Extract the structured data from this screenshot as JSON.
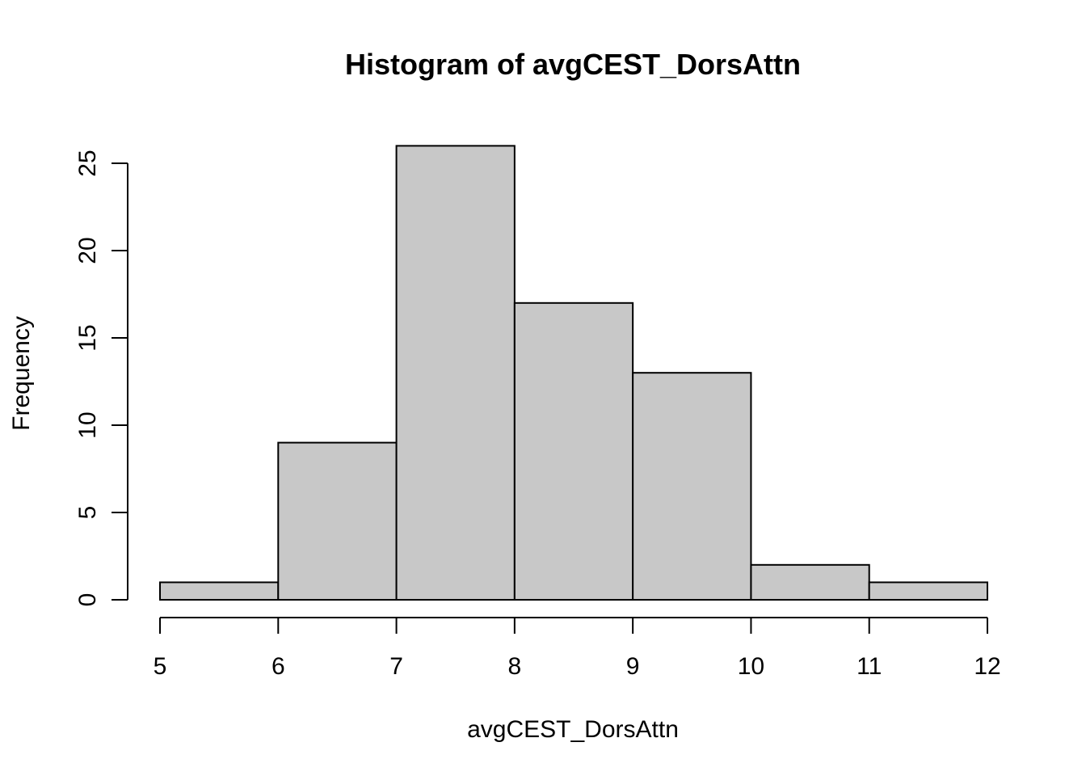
{
  "chart_data": {
    "type": "bar",
    "title": "Histogram of avgCEST_DorsAttn",
    "xlabel": "avgCEST_DorsAttn",
    "ylabel": "Frequency",
    "bins": [
      {
        "x0": 5,
        "x1": 6,
        "count": 1
      },
      {
        "x0": 6,
        "x1": 7,
        "count": 9
      },
      {
        "x0": 7,
        "x1": 8,
        "count": 26
      },
      {
        "x0": 8,
        "x1": 9,
        "count": 17
      },
      {
        "x0": 9,
        "x1": 10,
        "count": 13
      },
      {
        "x0": 10,
        "x1": 11,
        "count": 2
      },
      {
        "x0": 11,
        "x1": 12,
        "count": 1
      }
    ],
    "xlim": [
      5,
      12
    ],
    "ylim": [
      0,
      25
    ],
    "x_ticks": [
      5,
      6,
      7,
      8,
      9,
      10,
      11,
      12
    ],
    "y_ticks": [
      0,
      5,
      10,
      15,
      20,
      25
    ],
    "bar_fill": "#c8c8c8",
    "bar_stroke": "#000000",
    "grid": false,
    "legend": "none"
  }
}
